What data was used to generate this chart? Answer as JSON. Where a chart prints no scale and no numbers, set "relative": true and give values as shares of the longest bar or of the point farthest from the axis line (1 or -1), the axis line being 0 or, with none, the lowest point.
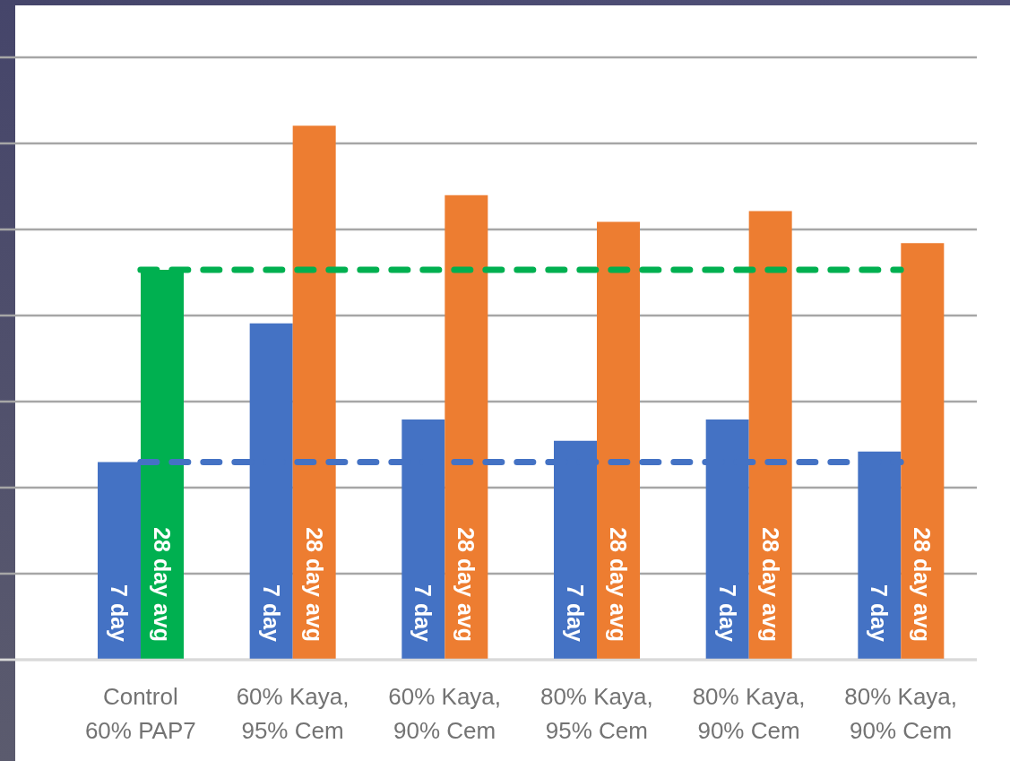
{
  "chart_data": {
    "type": "bar",
    "relative": true,
    "categories": [
      "Control\n60% PAP7",
      "60% Kaya,\n95% Cem",
      "60% Kaya,\n90% Cem",
      "80% Kaya,\n95% Cem",
      "80% Kaya,\n90% Cem",
      "80% Kaya,\n90% Cem"
    ],
    "series": [
      {
        "name": "7 day",
        "color": "#4472c4",
        "values": [
          0.37,
          0.63,
          0.45,
          0.41,
          0.45,
          0.39
        ]
      },
      {
        "name": "28 day avg",
        "color": "#ed7d31",
        "colors": [
          "#00b050",
          "#ed7d31",
          "#ed7d31",
          "#ed7d31",
          "#ed7d31",
          "#ed7d31"
        ],
        "values": [
          0.73,
          1,
          0.87,
          0.82,
          0.84,
          0.78
        ]
      }
    ],
    "ref_lines": [
      {
        "axis": "y",
        "value": 0.73,
        "color": "#00b050",
        "line_style": "dashed"
      },
      {
        "axis": "y",
        "value": 0.37,
        "color": "#4472c4",
        "line_style": "dashed"
      }
    ],
    "grid": "y"
  }
}
